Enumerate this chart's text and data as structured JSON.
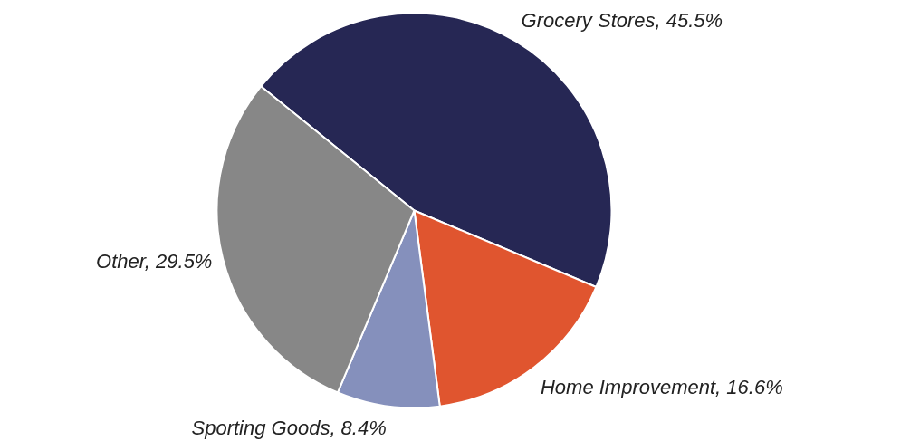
{
  "chart_data": {
    "type": "pie",
    "categories": [
      "Grocery Stores",
      "Home Improvement",
      "Sporting Goods",
      "Other"
    ],
    "values": [
      45.5,
      16.6,
      8.4,
      29.5
    ],
    "value_labels": [
      "45.5%",
      "16.6%",
      "8.4%",
      "29.5%"
    ],
    "colors": [
      "#262754",
      "#e0552f",
      "#8590bc",
      "#878787"
    ]
  }
}
